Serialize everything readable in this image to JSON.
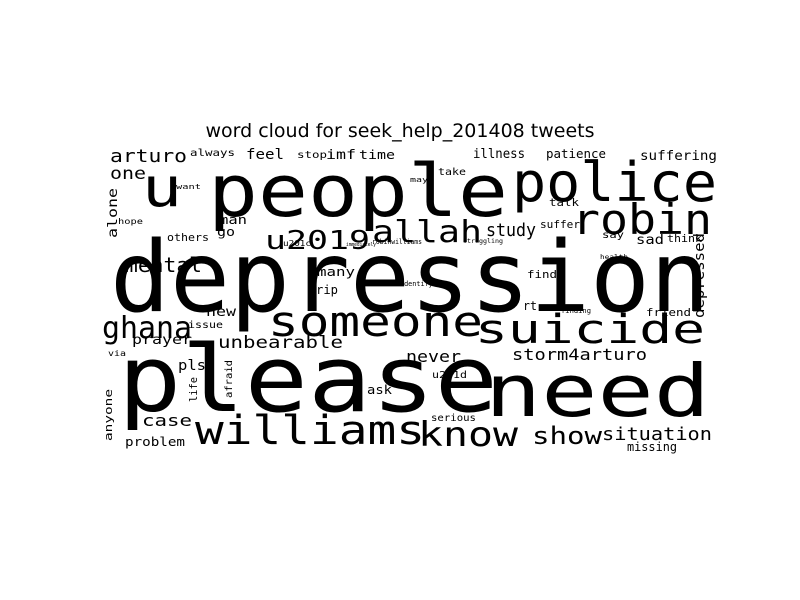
{
  "title": "word cloud for seek_help_201408 tweets",
  "chart_data": {
    "type": "wordcloud",
    "title": "word cloud for seek_help_201408 tweets",
    "color": "#000000",
    "background": "#ffffff",
    "words": [
      {
        "text": "depression",
        "weight": 1.0
      },
      {
        "text": "please",
        "weight": 0.92
      },
      {
        "text": "people",
        "weight": 0.78
      },
      {
        "text": "need",
        "weight": 0.62
      },
      {
        "text": "police",
        "weight": 0.55
      },
      {
        "text": "suicide",
        "weight": 0.44
      },
      {
        "text": "robin",
        "weight": 0.44
      },
      {
        "text": "someone",
        "weight": 0.44
      },
      {
        "text": "williams",
        "weight": 0.42
      },
      {
        "text": "u",
        "weight": 0.5
      },
      {
        "text": "know",
        "weight": 0.38
      },
      {
        "text": "allah",
        "weight": 0.3
      },
      {
        "text": "u2019",
        "weight": 0.27
      },
      {
        "text": "ghana",
        "weight": 0.3
      },
      {
        "text": "show",
        "weight": 0.25
      },
      {
        "text": "situation",
        "weight": 0.2
      },
      {
        "text": "mental",
        "weight": 0.21
      },
      {
        "text": "arturo",
        "weight": 0.21
      },
      {
        "text": "storm4arturo",
        "weight": 0.18
      },
      {
        "text": "unbearable",
        "weight": 0.17
      },
      {
        "text": "study",
        "weight": 0.18
      },
      {
        "text": "one",
        "weight": 0.17
      },
      {
        "text": "never",
        "weight": 0.17
      },
      {
        "text": "case",
        "weight": 0.16
      },
      {
        "text": "depressed",
        "weight": 0.15
      },
      {
        "text": "suffering",
        "weight": 0.14
      },
      {
        "text": "feel",
        "weight": 0.14
      },
      {
        "text": "prayer",
        "weight": 0.13
      },
      {
        "text": "pls",
        "weight": 0.14
      },
      {
        "text": "problem",
        "weight": 0.12
      },
      {
        "text": "missing",
        "weight": 0.12
      },
      {
        "text": "alone",
        "weight": 0.11
      },
      {
        "text": "illness",
        "weight": 0.12
      },
      {
        "text": "patience",
        "weight": 0.12
      },
      {
        "text": "imf",
        "weight": 0.13
      },
      {
        "text": "time",
        "weight": 0.12
      },
      {
        "text": "always",
        "weight": 0.1
      },
      {
        "text": "stop",
        "weight": 0.1
      },
      {
        "text": "new",
        "weight": 0.12
      },
      {
        "text": "issue",
        "weight": 0.1
      },
      {
        "text": "many",
        "weight": 0.11
      },
      {
        "text": "rip",
        "weight": 0.1
      },
      {
        "text": "find",
        "weight": 0.1
      },
      {
        "text": "friend",
        "weight": 0.1
      },
      {
        "text": "sad",
        "weight": 0.12
      },
      {
        "text": "think",
        "weight": 0.11
      },
      {
        "text": "talk",
        "weight": 0.11
      },
      {
        "text": "say",
        "weight": 0.1
      },
      {
        "text": "go",
        "weight": 0.11
      },
      {
        "text": "man",
        "weight": 0.11
      },
      {
        "text": "others",
        "weight": 0.1
      },
      {
        "text": "serious",
        "weight": 0.1
      },
      {
        "text": "anyone",
        "weight": 0.1
      },
      {
        "text": "life",
        "weight": 0.1
      },
      {
        "text": "ask",
        "weight": 0.1
      },
      {
        "text": "afraid",
        "weight": 0.09
      },
      {
        "text": "rt",
        "weight": 0.1
      },
      {
        "text": "suffer",
        "weight": 0.09
      },
      {
        "text": "take",
        "weight": 0.08
      },
      {
        "text": "u201d",
        "weight": 0.08
      },
      {
        "text": "u201c",
        "weight": 0.07
      },
      {
        "text": "hope",
        "weight": 0.08
      },
      {
        "text": "via",
        "weight": 0.07
      },
      {
        "text": "want",
        "weight": 0.06
      },
      {
        "text": "may",
        "weight": 0.06
      },
      {
        "text": "finding",
        "weight": 0.06
      },
      {
        "text": "identifying",
        "weight": 0.06
      },
      {
        "text": "robinwilliams",
        "weight": 0.06
      },
      {
        "text": "immediately",
        "weight": 0.04
      },
      {
        "text": "struggling",
        "weight": 0.05
      },
      {
        "text": "health",
        "weight": 0.05
      }
    ]
  }
}
